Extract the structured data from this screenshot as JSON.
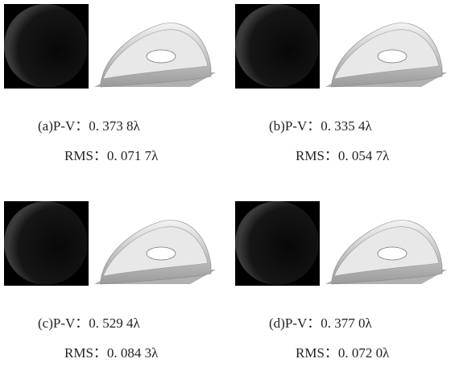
{
  "panels": [
    {
      "pv": "(a)P-V：0. 373 8λ",
      "rms": "RMS：0. 071 7λ"
    },
    {
      "pv": "(b)P-V：0. 335 4λ",
      "rms": "RMS：0. 054 7λ"
    },
    {
      "pv": "(c)P-V：0. 529 4λ",
      "rms": "RMS：0. 084 3λ"
    },
    {
      "pv": "(d)P-V：0. 377 0λ",
      "rms": "RMS：0. 072 0λ"
    }
  ]
}
